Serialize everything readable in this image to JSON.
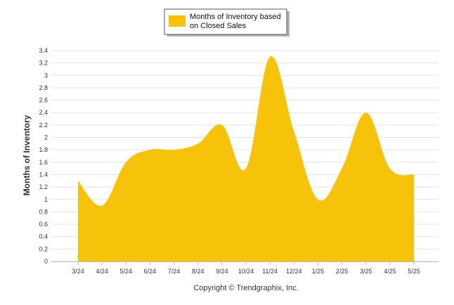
{
  "colors": {
    "series": "#F6C30A",
    "grid": "#E3E3E3",
    "axis": "#BBBBBB",
    "legend_border": "#555555"
  },
  "chart_data": {
    "type": "area",
    "title": "",
    "xlabel": "",
    "ylabel": "Months of Inventory",
    "categories": [
      "3/24",
      "4/24",
      "5/24",
      "6/24",
      "7/24",
      "8/24",
      "9/24",
      "10/24",
      "11/24",
      "12/24",
      "1/25",
      "2/25",
      "3/25",
      "4/25",
      "5/25"
    ],
    "series": [
      {
        "name": "Months of Inventory based on Closed Sales",
        "values": [
          1.3,
          0.9,
          1.6,
          1.8,
          1.8,
          1.9,
          2.2,
          1.5,
          3.3,
          2.1,
          1.0,
          1.5,
          2.4,
          1.5,
          1.4
        ]
      }
    ],
    "ylim": [
      0,
      3.4
    ],
    "yticks": [
      "0",
      "0.2",
      "0.4",
      "0.6",
      "0.8",
      "1",
      "1.2",
      "1.4",
      "1.6",
      "1.8",
      "2",
      "2.2",
      "2.4",
      "2.6",
      "2.8",
      "3",
      "3.2",
      "3.4"
    ],
    "grid": true,
    "legend_position": "top-center",
    "legend_lines": [
      "Months of Inventory based",
      "on Closed Sales"
    ]
  },
  "footer": {
    "copyright": "Copyright © Trendgraphix, Inc."
  }
}
